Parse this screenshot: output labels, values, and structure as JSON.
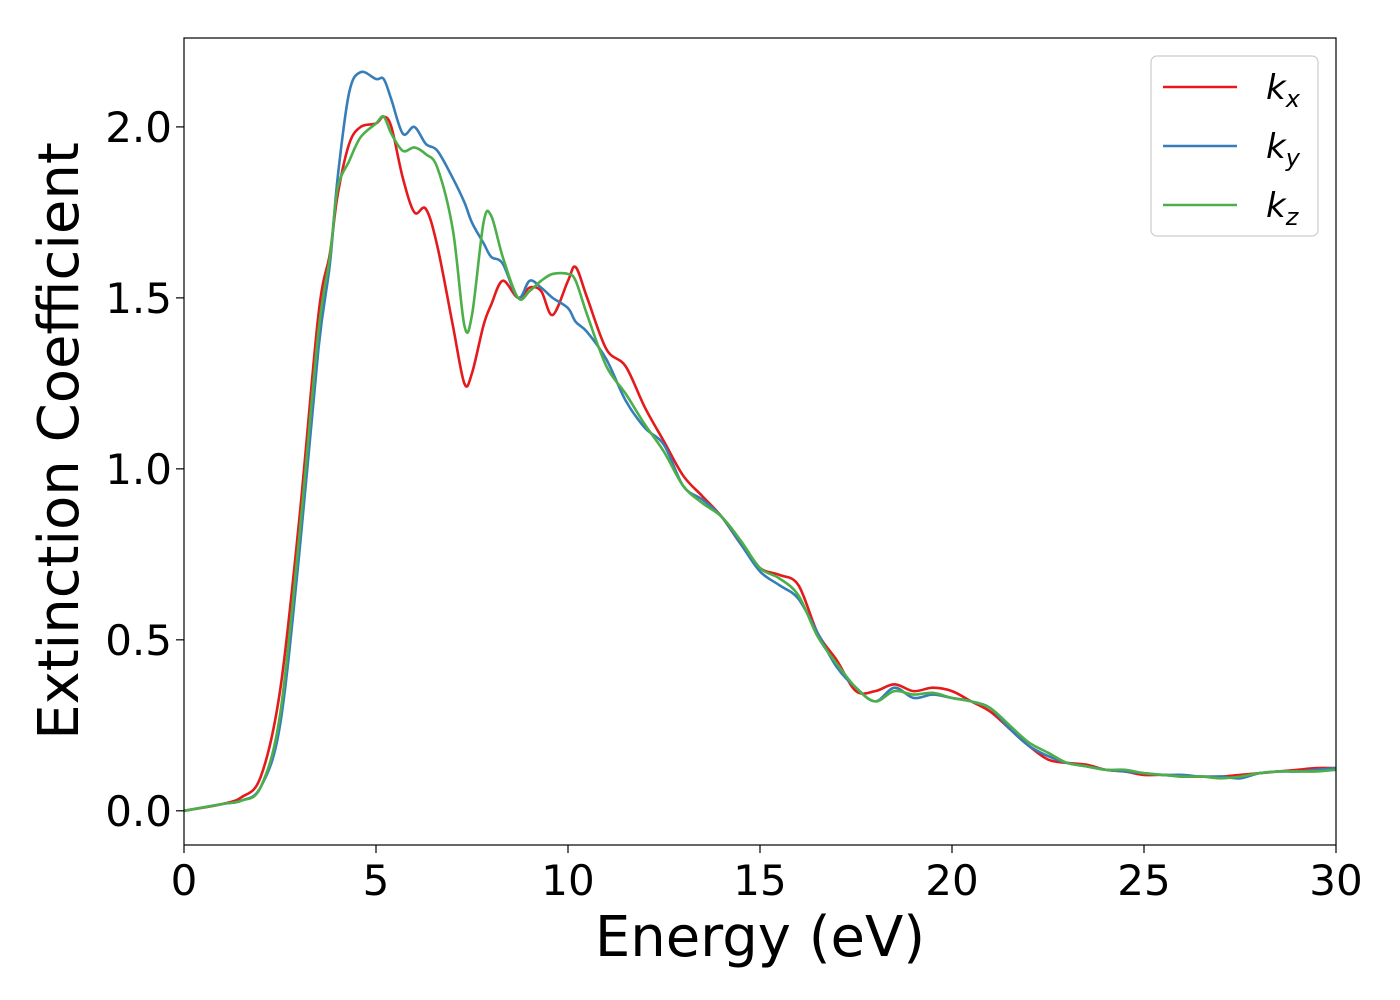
{
  "chart_data": {
    "type": "line",
    "title": "",
    "xlabel": "Energy (eV)",
    "ylabel": "Extinction Coefficient",
    "xlim": [
      0,
      30
    ],
    "ylim": [
      -0.1,
      2.26
    ],
    "xticks": [
      0,
      5,
      10,
      15,
      20,
      25,
      30
    ],
    "xtick_labels": [
      "0",
      "5",
      "10",
      "15",
      "20",
      "25",
      "30"
    ],
    "yticks": [
      0.0,
      0.5,
      1.0,
      1.5,
      2.0
    ],
    "ytick_labels": [
      "0.0",
      "0.5",
      "1.0",
      "1.5",
      "2.0"
    ],
    "grid": false,
    "legend_position": "top-right",
    "series": [
      {
        "name": "k_x",
        "label_main": "k",
        "label_sub": "x",
        "color": "#e41a1c",
        "x": [
          0,
          1,
          1.5,
          2,
          2.5,
          3,
          3.5,
          3.8,
          4,
          4.3,
          4.6,
          5,
          5.2,
          5.4,
          5.7,
          6,
          6.3,
          6.6,
          7,
          7.3,
          7.5,
          7.8,
          8,
          8.3,
          8.7,
          9,
          9.3,
          9.6,
          10,
          10.2,
          10.5,
          11,
          11.5,
          12,
          12.5,
          13,
          13.5,
          14,
          14.5,
          15,
          15.5,
          16,
          16.5,
          17,
          17.5,
          18,
          18.5,
          19,
          19.5,
          20,
          20.5,
          21,
          21.5,
          22,
          22.5,
          23,
          23.5,
          24,
          24.5,
          25,
          25.5,
          26,
          26.5,
          27,
          27.5,
          28,
          28.5,
          29,
          29.5,
          30
        ],
        "y": [
          0,
          0.02,
          0.04,
          0.1,
          0.35,
          0.85,
          1.45,
          1.63,
          1.8,
          1.95,
          2.0,
          2.01,
          2.03,
          2.0,
          1.85,
          1.75,
          1.76,
          1.65,
          1.42,
          1.25,
          1.28,
          1.42,
          1.48,
          1.55,
          1.5,
          1.53,
          1.52,
          1.45,
          1.55,
          1.59,
          1.5,
          1.35,
          1.3,
          1.18,
          1.08,
          0.98,
          0.92,
          0.86,
          0.78,
          0.71,
          0.69,
          0.66,
          0.52,
          0.44,
          0.35,
          0.35,
          0.37,
          0.35,
          0.36,
          0.35,
          0.32,
          0.29,
          0.24,
          0.19,
          0.15,
          0.14,
          0.135,
          0.12,
          0.115,
          0.105,
          0.105,
          0.1,
          0.1,
          0.1,
          0.105,
          0.11,
          0.115,
          0.12,
          0.125,
          0.125
        ]
      },
      {
        "name": "k_y",
        "label_main": "k",
        "label_sub": "y",
        "color": "#377eb8",
        "x": [
          0,
          1,
          1.5,
          2,
          2.5,
          3,
          3.5,
          3.8,
          4,
          4.3,
          4.6,
          5,
          5.2,
          5.4,
          5.7,
          6,
          6.3,
          6.6,
          7,
          7.3,
          7.5,
          7.8,
          8,
          8.3,
          8.7,
          9,
          9.3,
          9.6,
          10,
          10.2,
          10.5,
          11,
          11.5,
          12,
          12.5,
          13,
          13.5,
          14,
          14.5,
          15,
          15.5,
          16,
          16.5,
          17,
          17.5,
          18,
          18.5,
          19,
          19.5,
          20,
          20.5,
          21,
          21.5,
          22,
          22.5,
          23,
          23.5,
          24,
          24.5,
          25,
          25.5,
          26,
          26.5,
          27,
          27.5,
          28,
          28.5,
          29,
          29.5,
          30
        ],
        "y": [
          0,
          0.02,
          0.03,
          0.07,
          0.25,
          0.75,
          1.35,
          1.6,
          1.85,
          2.1,
          2.16,
          2.14,
          2.14,
          2.08,
          1.98,
          2.0,
          1.95,
          1.93,
          1.85,
          1.78,
          1.72,
          1.66,
          1.62,
          1.6,
          1.5,
          1.55,
          1.53,
          1.5,
          1.47,
          1.43,
          1.4,
          1.32,
          1.2,
          1.12,
          1.07,
          0.95,
          0.91,
          0.86,
          0.78,
          0.7,
          0.66,
          0.62,
          0.52,
          0.42,
          0.36,
          0.32,
          0.36,
          0.33,
          0.34,
          0.33,
          0.32,
          0.3,
          0.24,
          0.19,
          0.16,
          0.14,
          0.13,
          0.12,
          0.115,
          0.11,
          0.105,
          0.105,
          0.1,
          0.1,
          0.095,
          0.11,
          0.115,
          0.115,
          0.12,
          0.125
        ]
      },
      {
        "name": "k_z",
        "label_main": "k",
        "label_sub": "z",
        "color": "#4daf4a",
        "x": [
          0,
          1,
          1.5,
          2,
          2.5,
          3,
          3.5,
          3.8,
          4,
          4.3,
          4.6,
          5,
          5.2,
          5.4,
          5.7,
          6,
          6.3,
          6.6,
          7,
          7.3,
          7.5,
          7.8,
          8,
          8.3,
          8.7,
          9,
          9.3,
          9.6,
          10,
          10.2,
          10.5,
          11,
          11.5,
          12,
          12.5,
          13,
          13.5,
          14,
          14.5,
          15,
          15.5,
          16,
          16.5,
          17,
          17.5,
          18,
          18.5,
          19,
          19.5,
          20,
          20.5,
          21,
          21.5,
          22,
          22.5,
          23,
          23.5,
          24,
          24.5,
          25,
          25.5,
          26,
          26.5,
          27,
          27.5,
          28,
          28.5,
          29,
          29.5,
          30
        ],
        "y": [
          0,
          0.02,
          0.03,
          0.07,
          0.28,
          0.8,
          1.4,
          1.62,
          1.82,
          1.9,
          1.97,
          2.01,
          2.03,
          1.98,
          1.93,
          1.94,
          1.92,
          1.88,
          1.7,
          1.42,
          1.45,
          1.72,
          1.74,
          1.62,
          1.5,
          1.52,
          1.55,
          1.57,
          1.57,
          1.55,
          1.45,
          1.3,
          1.22,
          1.13,
          1.05,
          0.95,
          0.9,
          0.86,
          0.79,
          0.71,
          0.68,
          0.63,
          0.51,
          0.43,
          0.36,
          0.32,
          0.35,
          0.34,
          0.345,
          0.33,
          0.32,
          0.3,
          0.25,
          0.2,
          0.17,
          0.14,
          0.13,
          0.12,
          0.12,
          0.11,
          0.105,
          0.1,
          0.1,
          0.095,
          0.1,
          0.11,
          0.115,
          0.115,
          0.115,
          0.12
        ]
      }
    ]
  }
}
